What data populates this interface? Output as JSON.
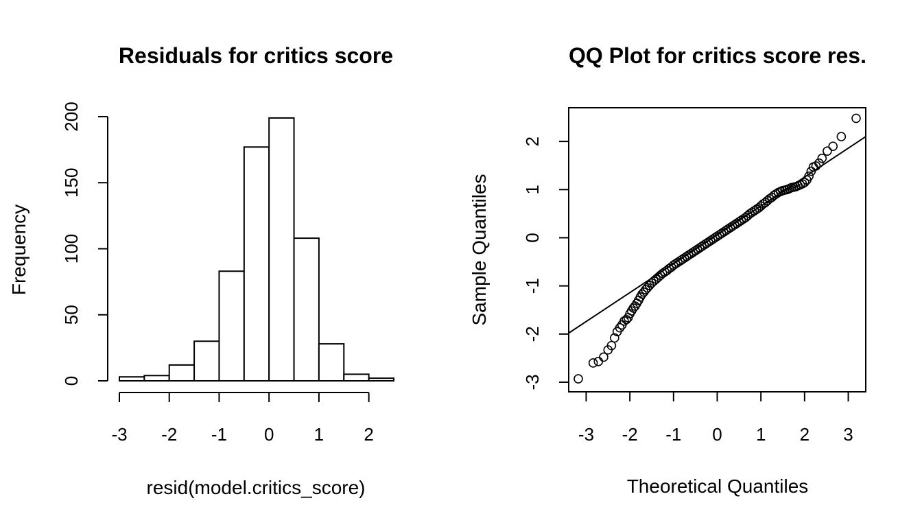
{
  "chart_data": [
    {
      "type": "bar",
      "title": "Residuals for critics score",
      "xlabel": "resid(model.critics_score)",
      "ylabel": "Frequency",
      "bin_edges": [
        -3,
        -2.5,
        -2,
        -1.5,
        -1,
        -0.5,
        0,
        0.5,
        1,
        1.5,
        2,
        2.5
      ],
      "values": [
        3,
        4,
        12,
        30,
        83,
        177,
        199,
        108,
        28,
        5,
        2
      ],
      "xlim": [
        -3,
        2.5
      ],
      "ylim": [
        0,
        200
      ],
      "xticks": [
        -3,
        -2,
        -1,
        0,
        1,
        2
      ],
      "yticks": [
        0,
        50,
        100,
        150,
        200
      ]
    },
    {
      "type": "scatter",
      "title": "QQ Plot for critics score res.",
      "xlabel": "Theoretical Quantiles",
      "ylabel": "Sample Quantiles",
      "xlim": [
        -3.4,
        3.4
      ],
      "ylim": [
        -3.2,
        2.7
      ],
      "xticks": [
        -3,
        -2,
        -1,
        0,
        1,
        2,
        3
      ],
      "yticks": [
        -3,
        -2,
        -1,
        0,
        1,
        2
      ],
      "reference_line": {
        "slope": 0.6,
        "intercept": 0.06
      },
      "points": [
        [
          -3.18,
          -2.93
        ],
        [
          -2.84,
          -2.6
        ],
        [
          -2.72,
          -2.57
        ],
        [
          -2.6,
          -2.48
        ],
        [
          -2.5,
          -2.33
        ],
        [
          -2.42,
          -2.24
        ],
        [
          -2.35,
          -2.08
        ],
        [
          -2.29,
          -1.95
        ],
        [
          -2.23,
          -1.87
        ],
        [
          -2.18,
          -1.81
        ],
        [
          -2.13,
          -1.73
        ],
        [
          -2.08,
          -1.7
        ],
        [
          -2.04,
          -1.66
        ],
        [
          -2.0,
          -1.58
        ],
        [
          -1.96,
          -1.52
        ],
        [
          -1.92,
          -1.46
        ],
        [
          -1.88,
          -1.42
        ],
        [
          -1.84,
          -1.36
        ],
        [
          -1.8,
          -1.3
        ],
        [
          -1.76,
          -1.23
        ],
        [
          -1.72,
          -1.17
        ],
        [
          -1.68,
          -1.13
        ],
        [
          -1.64,
          -1.08
        ],
        [
          -1.6,
          -1.04
        ],
        [
          -1.55,
          -0.99
        ],
        [
          -1.5,
          -0.94
        ],
        [
          -1.45,
          -0.9
        ],
        [
          -1.4,
          -0.86
        ],
        [
          -1.35,
          -0.82
        ],
        [
          -1.3,
          -0.78
        ],
        [
          -1.25,
          -0.74
        ],
        [
          -1.2,
          -0.71
        ],
        [
          -1.15,
          -0.68
        ],
        [
          -1.1,
          -0.64
        ],
        [
          -1.05,
          -0.61
        ],
        [
          -1.0,
          -0.57
        ],
        [
          -0.95,
          -0.54
        ],
        [
          -0.9,
          -0.51
        ],
        [
          -0.85,
          -0.48
        ],
        [
          -0.8,
          -0.45
        ],
        [
          -0.75,
          -0.42
        ],
        [
          -0.7,
          -0.39
        ],
        [
          -0.65,
          -0.36
        ],
        [
          -0.6,
          -0.33
        ],
        [
          -0.55,
          -0.3
        ],
        [
          -0.5,
          -0.27
        ],
        [
          -0.45,
          -0.24
        ],
        [
          -0.4,
          -0.21
        ],
        [
          -0.35,
          -0.18
        ],
        [
          -0.3,
          -0.15
        ],
        [
          -0.25,
          -0.12
        ],
        [
          -0.2,
          -0.09
        ],
        [
          -0.15,
          -0.06
        ],
        [
          -0.1,
          -0.03
        ],
        [
          -0.05,
          0.0
        ],
        [
          0.0,
          0.03
        ],
        [
          0.05,
          0.06
        ],
        [
          0.1,
          0.09
        ],
        [
          0.15,
          0.12
        ],
        [
          0.2,
          0.15
        ],
        [
          0.25,
          0.18
        ],
        [
          0.3,
          0.21
        ],
        [
          0.35,
          0.24
        ],
        [
          0.4,
          0.27
        ],
        [
          0.45,
          0.3
        ],
        [
          0.5,
          0.33
        ],
        [
          0.55,
          0.36
        ],
        [
          0.6,
          0.39
        ],
        [
          0.65,
          0.42
        ],
        [
          0.7,
          0.46
        ],
        [
          0.75,
          0.5
        ],
        [
          0.8,
          0.53
        ],
        [
          0.85,
          0.56
        ],
        [
          0.9,
          0.59
        ],
        [
          0.95,
          0.62
        ],
        [
          1.0,
          0.66
        ],
        [
          1.05,
          0.7
        ],
        [
          1.1,
          0.73
        ],
        [
          1.15,
          0.77
        ],
        [
          1.2,
          0.81
        ],
        [
          1.25,
          0.84
        ],
        [
          1.3,
          0.88
        ],
        [
          1.35,
          0.91
        ],
        [
          1.4,
          0.94
        ],
        [
          1.45,
          0.96
        ],
        [
          1.5,
          0.98
        ],
        [
          1.55,
          0.99
        ],
        [
          1.6,
          1.0
        ],
        [
          1.65,
          1.02
        ],
        [
          1.7,
          1.04
        ],
        [
          1.75,
          1.05
        ],
        [
          1.8,
          1.06
        ],
        [
          1.85,
          1.08
        ],
        [
          1.9,
          1.1
        ],
        [
          1.95,
          1.12
        ],
        [
          2.0,
          1.15
        ],
        [
          2.05,
          1.2
        ],
        [
          2.1,
          1.28
        ],
        [
          2.15,
          1.38
        ],
        [
          2.2,
          1.47
        ],
        [
          2.26,
          1.49
        ],
        [
          2.33,
          1.55
        ],
        [
          2.4,
          1.65
        ],
        [
          2.52,
          1.8
        ],
        [
          2.65,
          1.9
        ],
        [
          2.84,
          2.1
        ],
        [
          3.18,
          2.48
        ]
      ]
    }
  ]
}
